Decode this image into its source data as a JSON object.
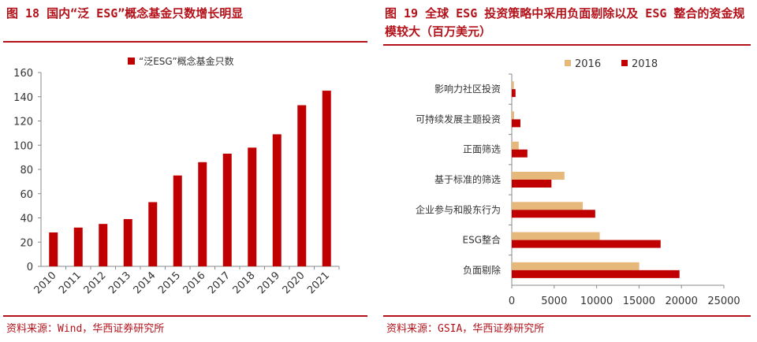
{
  "figures": [
    {
      "title": "图 18  国内“泛 ESG”概念基金只数增长明显",
      "source": "资料来源：Wind，华西证券研究所"
    },
    {
      "title": "图 19  全球 ESG 投资策略中采用负面剔除以及 ESG 整合的资金规模较大（百万美元）",
      "source": "资料来源：GSIA，华西证券研究所"
    }
  ],
  "colors": {
    "accent": "#b3121a",
    "bar2018": "#c00000",
    "bar2016": "#e6b87a",
    "axis": "#888888",
    "text": "#333333"
  },
  "chart_data": [
    {
      "type": "bar",
      "title": "图 18  国内“泛 ESG”概念基金只数增长明显",
      "categories": [
        "2010",
        "2011",
        "2012",
        "2013",
        "2014",
        "2015",
        "2016",
        "2017",
        "2018",
        "2019",
        "2020",
        "2021"
      ],
      "series": [
        {
          "name": "“泛ESG”概念基金只数",
          "values": [
            28,
            32,
            35,
            39,
            53,
            75,
            86,
            93,
            98,
            109,
            133,
            145
          ]
        }
      ],
      "ylim": [
        0,
        160
      ],
      "yticks": [
        0,
        20,
        40,
        60,
        80,
        100,
        120,
        140,
        160
      ],
      "xlabel": "",
      "ylabel": "",
      "legend": "top-center",
      "grid": false
    },
    {
      "type": "bar",
      "orientation": "horizontal",
      "title": "图 19  全球 ESG 投资策略中采用负面剔除以及 ESG 整合的资金规模较大（百万美元）",
      "categories": [
        "影响力社区投资",
        "可持续发展主题投资",
        "正面筛选",
        "基于标准的筛选",
        "企业参与和股东行为",
        "ESG整合",
        "负面剔除"
      ],
      "series": [
        {
          "name": "2016",
          "values": [
            248,
            276,
            818,
            6210,
            8365,
            10369,
            15023
          ]
        },
        {
          "name": "2018",
          "values": [
            444,
            1018,
            1842,
            4679,
            9835,
            17544,
            19771
          ]
        }
      ],
      "xlim": [
        0,
        25000
      ],
      "xticks": [
        0,
        5000,
        10000,
        15000,
        20000,
        25000
      ],
      "xlabel": "",
      "ylabel": "",
      "legend": "top-left",
      "grid": false
    }
  ]
}
